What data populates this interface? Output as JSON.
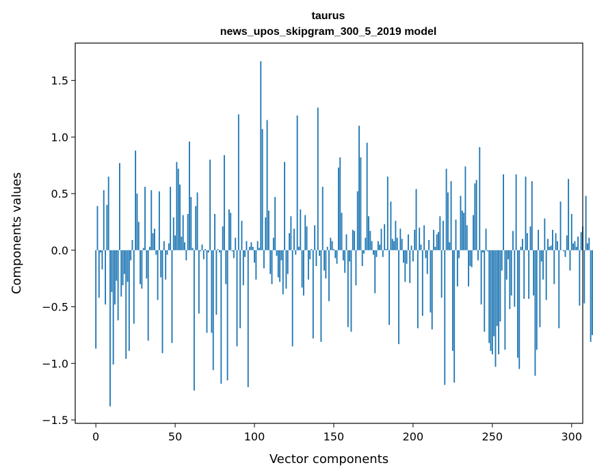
{
  "chart_data": {
    "type": "bar",
    "title": "taurus",
    "subtitle": "news_upos_skipgram_300_5_2019 model",
    "xlabel": "Vector components",
    "ylabel": "Components values",
    "xlim": [
      -13,
      307
    ],
    "ylim": [
      -1.53,
      1.83
    ],
    "xticks": [
      0,
      50,
      100,
      150,
      200,
      250,
      300
    ],
    "xtick_labels": [
      "0",
      "50",
      "100",
      "150",
      "200",
      "250",
      "300"
    ],
    "yticks": [
      -1.5,
      -1.0,
      -0.5,
      0.0,
      0.5,
      1.0,
      1.5
    ],
    "ytick_labels": [
      "−1.5",
      "−1.0",
      "−0.5",
      "0.0",
      "0.5",
      "1.0",
      "1.5"
    ],
    "bar_color": "#1f77b4",
    "values": [
      -0.87,
      0.39,
      -0.42,
      -0.02,
      -0.17,
      0.53,
      -0.48,
      0.4,
      0.65,
      -1.38,
      -0.37,
      -1.01,
      -0.48,
      -0.27,
      -0.62,
      0.77,
      -0.41,
      -0.31,
      -0.21,
      -0.96,
      -0.28,
      -0.89,
      -0.09,
      0.09,
      -0.65,
      0.88,
      0.5,
      0.25,
      -0.3,
      -0.34,
      0.02,
      0.56,
      -0.25,
      -0.8,
      0.03,
      0.53,
      0.15,
      0.19,
      -0.04,
      -0.44,
      0.52,
      -0.24,
      -0.91,
      0.08,
      -0.26,
      -0.04,
      0.06,
      0.56,
      -0.82,
      0.29,
      0.13,
      0.78,
      0.72,
      0.58,
      0.12,
      0.31,
      0.07,
      -0.09,
      0.32,
      0.96,
      0.47,
      0.02,
      -1.24,
      0.39,
      0.51,
      -0.56,
      -0.01,
      0.05,
      -0.08,
      0.01,
      -0.73,
      -0.02,
      0.8,
      -0.73,
      -1.06,
      0.32,
      -0.57,
      0.01,
      -0.02,
      -1.18,
      0.21,
      0.84,
      -0.3,
      -1.15,
      0.36,
      0.33,
      -0.01,
      -0.07,
      0.11,
      -0.85,
      1.2,
      -0.69,
      0.26,
      -0.31,
      -0.06,
      0.08,
      -1.21,
      0.03,
      0.07,
      0.03,
      -0.11,
      -0.26,
      0.08,
      0.02,
      1.67,
      1.07,
      -0.16,
      0.29,
      1.15,
      0.35,
      -0.21,
      -0.3,
      0.11,
      0.47,
      -0.05,
      -0.24,
      -0.28,
      -0.09,
      -0.39,
      0.78,
      -0.34,
      -0.21,
      0.15,
      0.3,
      -0.85,
      0.19,
      -0.04,
      1.19,
      0.03,
      0.36,
      -0.33,
      -0.4,
      0.31,
      0.21,
      -0.26,
      -0.08,
      0.01,
      -0.78,
      0.22,
      -0.14,
      1.26,
      -0.05,
      -0.81,
      0.56,
      -0.18,
      -0.25,
      0.03,
      -0.45,
      0.11,
      0.08,
      0.01,
      -0.07,
      -0.12,
      0.73,
      0.82,
      0.33,
      -0.09,
      -0.2,
      0.14,
      -0.68,
      -0.1,
      -0.72,
      0.18,
      0.17,
      -0.31,
      0.52,
      1.1,
      0.82,
      -0.14,
      -0.03,
      0.11,
      0.95,
      0.3,
      0.17,
      0.08,
      -0.04,
      -0.38,
      -0.06,
      0.08,
      0.05,
      0.19,
      -0.06,
      0.23,
      0.01,
      0.65,
      -0.66,
      0.43,
      0.1,
      0.08,
      0.26,
      0.11,
      -0.83,
      0.19,
      0.1,
      -0.11,
      -0.28,
      -0.12,
      0.14,
      -0.29,
      0.04,
      -0.1,
      0.18,
      0.54,
      -0.69,
      0.2,
      0.05,
      -0.58,
      0.22,
      -0.07,
      -0.21,
      0.09,
      -0.55,
      -0.7,
      0.18,
      0.03,
      0.14,
      0.16,
      0.3,
      -0.42,
      0.26,
      -1.19,
      0.72,
      0.51,
      0.07,
      0.61,
      -0.89,
      -1.17,
      0.27,
      -0.32,
      -0.07,
      0.48,
      0.35,
      0.33,
      0.74,
      0.22,
      -0.32,
      -0.14,
      -0.15,
      0.31,
      0.59,
      0.62,
      -0.09,
      0.91,
      -0.48,
      -0.02,
      -0.72,
      0.19,
      -0.01,
      -0.82,
      -0.89,
      -0.92,
      -0.76,
      -1.03,
      -0.67,
      -0.92,
      -0.63,
      -0.18,
      0.67,
      -0.88,
      -0.26,
      -0.08,
      -0.52,
      -0.4,
      0.17,
      -0.5,
      0.67,
      -0.95,
      -1.05,
      0.03,
      0.1,
      -0.43,
      0.65,
      0.15,
      -0.43,
      0.21,
      0.61,
      -0.4,
      -1.11,
      -0.88,
      0.18,
      -0.68,
      -0.1,
      -0.26,
      0.28,
      -0.44,
      0.1,
      0.03,
      0.04,
      0.18,
      -0.3,
      0.15,
      0.08,
      -0.69,
      0.43,
      0.0,
      -0.01,
      -0.06,
      0.13,
      0.63,
      -0.18,
      0.32,
      0.06,
      0.08,
      0.03,
      0.12,
      -0.49,
      0.16,
      0.21,
      -0.47,
      0.48,
      0.06,
      0.11,
      -0.81,
      -0.75,
      -0.04,
      0.07,
      0.19,
      0.32,
      0.63,
      0.34,
      -0.04,
      -0.66,
      0.73,
      -0.44,
      -0.37,
      -0.68,
      0.45,
      0.18,
      0.68,
      -0.56,
      0.11,
      0.74,
      0.29,
      -0.48,
      -0.76,
      0.56,
      -0.75,
      -0.61,
      -0.4,
      0.78,
      0.45,
      -0.72,
      -0.04,
      0.12,
      0.06,
      0.68,
      -0.05,
      -0.61,
      0.44,
      0.85,
      -0.1,
      0.46
    ]
  }
}
